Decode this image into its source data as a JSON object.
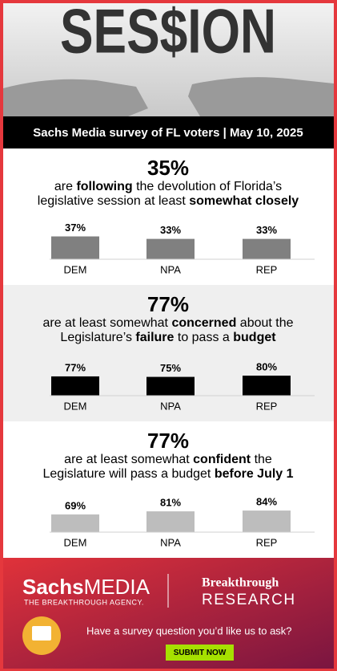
{
  "header": {
    "logo_text": "SES$ION",
    "banner": "Sachs Media survey of FL voters | May 10, 2025"
  },
  "chart_data": [
    {
      "type": "bar",
      "title": "35%",
      "subtitle": [
        [
          {
            "text": "are ",
            "bold": false
          },
          {
            "text": "following",
            "bold": true
          },
          {
            "text": " the devolution of Florida’s",
            "bold": false
          }
        ],
        [
          {
            "text": "legislative session at least ",
            "bold": false
          },
          {
            "text": "somewhat closely",
            "bold": true
          }
        ]
      ],
      "categories": [
        "DEM",
        "NPA",
        "REP"
      ],
      "values": [
        37,
        33,
        33
      ],
      "value_labels": [
        "37%",
        "33%",
        "33%"
      ],
      "color": "#808080",
      "background": "#ffffff",
      "ylim": [
        0,
        52
      ]
    },
    {
      "type": "bar",
      "title": "77%",
      "subtitle": [
        [
          {
            "text": "are at least somewhat ",
            "bold": false
          },
          {
            "text": "concerned",
            "bold": true
          },
          {
            "text": " about the",
            "bold": false
          }
        ],
        [
          {
            "text": "Legislature’s ",
            "bold": false
          },
          {
            "text": "failure",
            "bold": true
          },
          {
            "text": " to pass a ",
            "bold": false
          },
          {
            "text": "budget",
            "bold": true
          }
        ]
      ],
      "categories": [
        "DEM",
        "NPA",
        "REP"
      ],
      "values": [
        77,
        75,
        80
      ],
      "value_labels": [
        "77%",
        "75%",
        "80%"
      ],
      "color": "#000000",
      "background": "#efefef",
      "ylim": [
        0,
        128
      ]
    },
    {
      "type": "bar",
      "title": "77%",
      "subtitle": [
        [
          {
            "text": "are at least somewhat ",
            "bold": false
          },
          {
            "text": "confident",
            "bold": true
          },
          {
            "text": " the",
            "bold": false
          }
        ],
        [
          {
            "text": "Legislature will pass a budget ",
            "bold": false
          },
          {
            "text": "before July 1",
            "bold": true
          }
        ]
      ],
      "categories": [
        "DEM",
        "NPA",
        "REP"
      ],
      "values": [
        69,
        81,
        84
      ],
      "value_labels": [
        "69%",
        "81%",
        "84%"
      ],
      "color": "#bdbdbd",
      "background": "#ffffff",
      "ylim": [
        0,
        125
      ]
    }
  ],
  "footer": {
    "brand_bold": "Sachs",
    "brand_light": "MEDIA",
    "tagline": "THE BREAKTHROUGH AGENCY.",
    "partner_top": "Breakthrough",
    "partner_bottom": "RESEARCH",
    "prompt": "Have a survey question you’d like us to ask?",
    "button": "SUBMIT NOW"
  }
}
